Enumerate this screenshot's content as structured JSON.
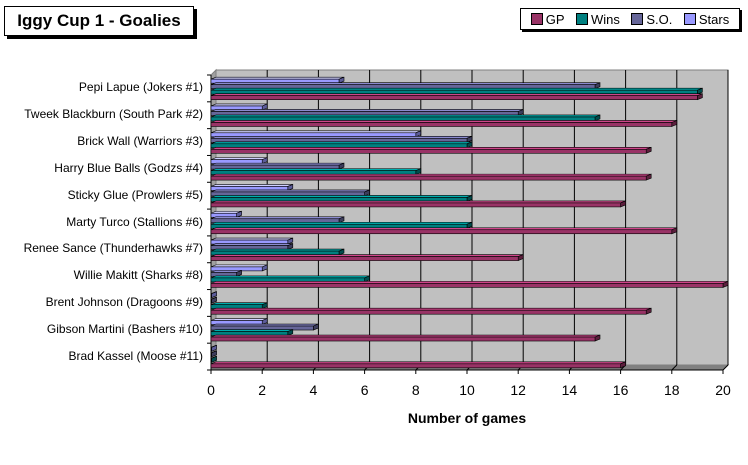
{
  "chart_data": {
    "type": "bar",
    "orientation": "horizontal",
    "title": "Iggy Cup 1 - Goalies",
    "xlabel": "Number of games",
    "xlim": [
      0,
      20
    ],
    "xticks": [
      "0",
      "2",
      "4",
      "6",
      "8",
      "10",
      "12",
      "14",
      "16",
      "18",
      "20"
    ],
    "grid": true,
    "legend_position": "top-right",
    "categories": [
      "Pepi Lapue (Jokers #1)",
      "Tweek Blackburn (South Park #2)",
      "Brick Wall (Warriors #3)",
      "Harry Blue Balls (Godzs #4)",
      "Sticky Glue (Prowlers #5)",
      "Marty Turco (Stallions #6)",
      "Renee Sance (Thunderhawks #7)",
      "Willie Makitt (Sharks #8)",
      "Brent Johnson (Dragoons #9)",
      "Gibson Martini (Bashers #10)",
      "Brad Kassel (Moose #11)"
    ],
    "series": [
      {
        "name": "GP",
        "color": "#993366",
        "values": [
          19,
          18,
          17,
          17,
          16,
          18,
          12,
          20,
          17,
          15,
          16
        ]
      },
      {
        "name": "Wins",
        "color": "#008080",
        "values": [
          19,
          15,
          10,
          8,
          10,
          10,
          5,
          6,
          2,
          3,
          0
        ]
      },
      {
        "name": "S.O.",
        "color": "#666699",
        "values": [
          15,
          12,
          10,
          5,
          6,
          5,
          3,
          1,
          0,
          4,
          0
        ]
      },
      {
        "name": "Stars",
        "color": "#9999ff",
        "values": [
          5,
          2,
          8,
          2,
          3,
          1,
          3,
          2,
          0,
          2,
          0
        ]
      }
    ]
  }
}
